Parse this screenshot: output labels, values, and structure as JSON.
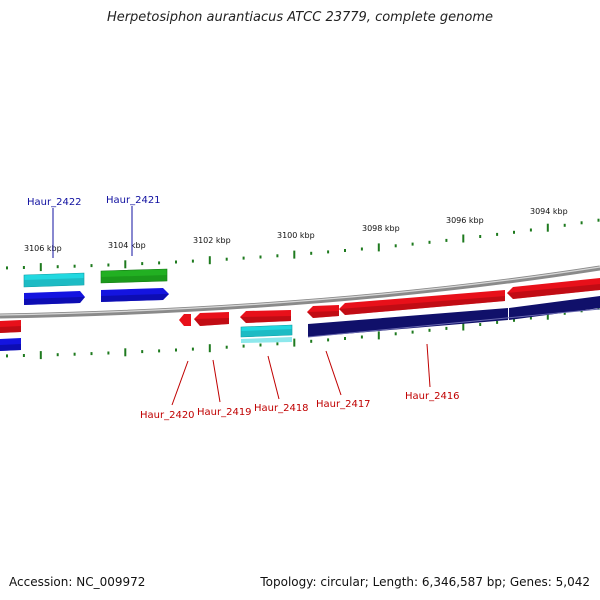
{
  "title": "Herpetosiphon aurantiacus ATCC 23779, complete genome",
  "footer": {
    "accession": "Accession: NC_009972",
    "summary": "Topology: circular; Length: 6,346,587 bp; Genes: 5,042"
  },
  "scale_labels": [
    "3106 kbp",
    "3104 kbp",
    "3102 kbp",
    "3100 kbp",
    "3098 kbp",
    "3096 kbp",
    "3094 kbp"
  ],
  "gene_labels": {
    "top": [
      "Haur_2422",
      "Haur_2421"
    ],
    "bottom": [
      "Haur_2420",
      "Haur_2419",
      "Haur_2418",
      "Haur_2417",
      "Haur_2416"
    ]
  },
  "colors": {
    "forward_cds": "#e8101a",
    "reverse_cds": "#1414e0",
    "rna_cyan": "#22d8e0",
    "green_feature": "#22b022",
    "dark_navy": "#10106a",
    "tick_green": "#1e7a1e",
    "label_red": "#c00000",
    "label_blue": "#1010a0",
    "backbone": "#8a8a8a"
  }
}
